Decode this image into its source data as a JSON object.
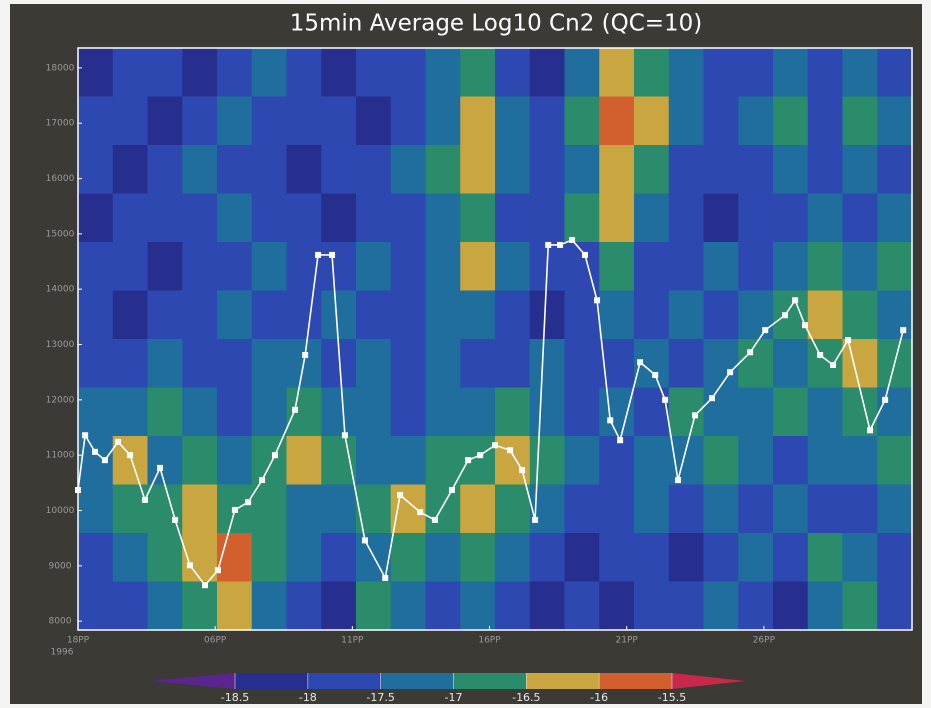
{
  "chart_data": {
    "type": "heatmap_line",
    "title": "15min Average Log10 Cn2 (QC=10)",
    "x_axis_year": "1996",
    "xlim": [
      0,
      30.4
    ],
    "xticks": [
      {
        "value": 0,
        "label": "18PP"
      },
      {
        "value": 5,
        "label": "06PP"
      },
      {
        "value": 10,
        "label": "11PP"
      },
      {
        "value": 15,
        "label": "16PP"
      },
      {
        "value": 20,
        "label": "21PP"
      },
      {
        "value": 25,
        "label": "26PP"
      }
    ],
    "ylim": [
      7840,
      18360
    ],
    "yticks": [
      8000,
      9000,
      10000,
      11000,
      12000,
      13000,
      14000,
      15000,
      16000,
      17000,
      18000
    ],
    "line": {
      "color": "#ffffff",
      "x": [
        0,
        0.26,
        0.62,
        0.98,
        1.46,
        1.9,
        2.44,
        2.99,
        3.54,
        4.08,
        4.63,
        5.1,
        5.72,
        6.2,
        6.71,
        7.18,
        7.91,
        8.28,
        8.75,
        9.26,
        9.73,
        10.46,
        11.2,
        11.74,
        12.47,
        13.01,
        13.63,
        14.22,
        14.66,
        15.2,
        15.75,
        16.19,
        16.66,
        17.14,
        17.57,
        18.01,
        18.48,
        18.92,
        19.4,
        19.76,
        20.49,
        21.04,
        21.4,
        21.87,
        22.49,
        23.11,
        23.77,
        24.5,
        25.05,
        25.77,
        26.14,
        26.5,
        27.05,
        27.52,
        28.07,
        28.87,
        29.42,
        30.08
      ],
      "values": [
        10370,
        11360,
        11060,
        10910,
        11240,
        11000,
        10190,
        10770,
        9830,
        9010,
        8650,
        8920,
        10010,
        10150,
        10550,
        11000,
        11820,
        12810,
        14620,
        14620,
        11360,
        9460,
        8780,
        10280,
        9970,
        9830,
        10370,
        10910,
        11000,
        11180,
        11090,
        10730,
        9830,
        14800,
        14800,
        14890,
        14620,
        13800,
        11630,
        11270,
        12680,
        12450,
        12000,
        10550,
        11720,
        12030,
        12500,
        12860,
        13260,
        13530,
        13800,
        13350,
        12810,
        12630,
        13080,
        11450,
        12000,
        13260
      ]
    },
    "colorbar": {
      "ticks": [
        -18.5,
        -18,
        -17.5,
        -17,
        -16.5,
        -16,
        -15.5
      ],
      "colors": [
        "#5b2590",
        "#262f8e",
        "#2d48b0",
        "#1f6e9e",
        "#2a8c6a",
        "#c9a640",
        "#d2602e",
        "#c8284a"
      ]
    },
    "heatmap": {
      "z": [
        [
          -18.2,
          -17.8,
          -17.8,
          -18.2,
          -17.8,
          -17.3,
          -17.8,
          -18.2,
          -17.8,
          -17.8,
          -17.3,
          -16.8,
          -17.8,
          -18.2,
          -17.3,
          -16.3,
          -16.8,
          -17.3,
          -17.8,
          -17.8,
          -17.3,
          -17.8,
          -17.3,
          -17.8
        ],
        [
          -17.8,
          -17.8,
          -18.2,
          -17.8,
          -17.3,
          -17.8,
          -17.8,
          -17.8,
          -18.2,
          -17.8,
          -17.3,
          -16.3,
          -17.3,
          -17.8,
          -16.8,
          -15.8,
          -16.3,
          -17.3,
          -17.8,
          -17.3,
          -16.8,
          -17.8,
          -16.8,
          -17.3
        ],
        [
          -17.8,
          -18.2,
          -17.8,
          -17.3,
          -17.8,
          -17.8,
          -18.2,
          -17.8,
          -17.8,
          -17.3,
          -16.8,
          -16.3,
          -17.3,
          -17.8,
          -17.3,
          -16.3,
          -16.8,
          -17.8,
          -17.8,
          -17.8,
          -17.3,
          -17.8,
          -17.3,
          -17.8
        ],
        [
          -18.2,
          -17.8,
          -17.8,
          -17.8,
          -17.3,
          -17.8,
          -17.8,
          -18.2,
          -17.8,
          -17.8,
          -17.3,
          -16.8,
          -17.8,
          -17.8,
          -16.8,
          -16.3,
          -17.3,
          -17.8,
          -18.2,
          -17.8,
          -17.8,
          -17.3,
          -17.8,
          -17.3
        ],
        [
          -17.8,
          -17.8,
          -18.2,
          -17.8,
          -17.8,
          -17.3,
          -17.8,
          -17.8,
          -17.3,
          -17.8,
          -17.3,
          -16.3,
          -17.3,
          -17.8,
          -17.8,
          -16.8,
          -17.8,
          -17.8,
          -17.3,
          -17.8,
          -17.3,
          -16.8,
          -17.3,
          -16.8
        ],
        [
          -17.8,
          -18.2,
          -17.8,
          -17.8,
          -17.3,
          -17.8,
          -17.8,
          -17.3,
          -17.8,
          -17.8,
          -17.3,
          -17.3,
          -17.8,
          -18.2,
          -17.8,
          -17.3,
          -17.8,
          -17.3,
          -17.8,
          -17.3,
          -16.8,
          -16.3,
          -16.8,
          -17.3
        ],
        [
          -17.8,
          -17.8,
          -17.3,
          -17.8,
          -17.8,
          -17.3,
          -17.3,
          -17.8,
          -17.3,
          -17.8,
          -17.3,
          -17.8,
          -17.8,
          -17.3,
          -17.8,
          -17.8,
          -17.3,
          -17.8,
          -17.3,
          -16.8,
          -17.3,
          -16.8,
          -16.3,
          -16.8
        ],
        [
          -17.3,
          -17.3,
          -16.8,
          -17.3,
          -17.8,
          -17.3,
          -16.8,
          -17.3,
          -17.3,
          -17.8,
          -17.3,
          -17.3,
          -16.8,
          -17.3,
          -17.8,
          -17.3,
          -17.8,
          -16.8,
          -17.3,
          -17.3,
          -16.8,
          -17.3,
          -16.8,
          -17.3
        ],
        [
          -17.3,
          -16.3,
          -17.3,
          -16.8,
          -17.3,
          -16.8,
          -16.3,
          -16.8,
          -17.3,
          -17.3,
          -16.8,
          -16.8,
          -16.3,
          -16.8,
          -17.3,
          -17.8,
          -17.3,
          -17.3,
          -16.8,
          -17.3,
          -17.8,
          -17.3,
          -17.3,
          -16.8
        ],
        [
          -17.3,
          -16.8,
          -16.8,
          -16.3,
          -16.8,
          -16.8,
          -17.3,
          -17.3,
          -16.8,
          -16.3,
          -16.8,
          -16.3,
          -16.8,
          -17.3,
          -17.8,
          -17.8,
          -17.3,
          -17.8,
          -17.3,
          -17.8,
          -17.3,
          -17.8,
          -17.8,
          -17.3
        ],
        [
          -17.8,
          -17.3,
          -16.8,
          -16.3,
          -15.8,
          -16.8,
          -17.3,
          -17.8,
          -17.3,
          -16.8,
          -17.3,
          -16.8,
          -17.3,
          -17.8,
          -18.2,
          -17.8,
          -17.8,
          -18.2,
          -17.8,
          -17.3,
          -17.8,
          -16.8,
          -17.3,
          -17.8
        ],
        [
          -17.8,
          -17.8,
          -17.3,
          -16.8,
          -16.3,
          -17.3,
          -17.8,
          -18.2,
          -16.8,
          -17.3,
          -17.8,
          -17.3,
          -17.8,
          -18.2,
          -17.8,
          -18.2,
          -17.8,
          -17.8,
          -17.3,
          -17.8,
          -18.2,
          -17.3,
          -16.8,
          -17.8
        ]
      ]
    }
  }
}
